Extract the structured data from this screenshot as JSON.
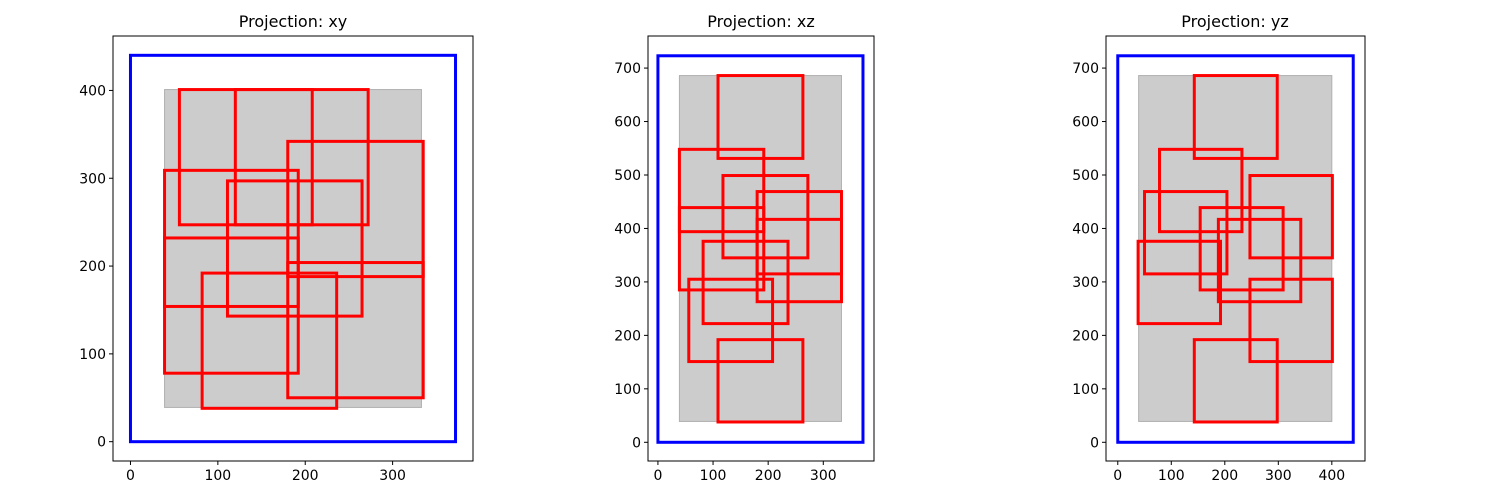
{
  "chart_data": [
    {
      "type": "rectangles",
      "title": "Projection: xy",
      "xlabel": "",
      "ylabel": "",
      "xlim": [
        -20,
        392
      ],
      "ylim": [
        -22,
        462
      ],
      "xticks": [
        0,
        100,
        200,
        300
      ],
      "yticks": [
        0,
        100,
        200,
        300,
        400
      ],
      "container": {
        "x0": 0,
        "y0": 0,
        "x1": 372,
        "y1": 440,
        "color": "#0000ff"
      },
      "region": {
        "x0": 39,
        "y0": 39,
        "x1": 333,
        "y1": 401,
        "color": "#cccccc"
      },
      "boxes": [
        {
          "x0": 56,
          "y0": 247,
          "x1": 208,
          "y1": 401
        },
        {
          "x0": 120,
          "y0": 247,
          "x1": 272,
          "y1": 401
        },
        {
          "x0": 180,
          "y0": 188,
          "x1": 335,
          "y1": 342
        },
        {
          "x0": 39,
          "y0": 154,
          "x1": 192,
          "y1": 309
        },
        {
          "x0": 111,
          "y0": 143,
          "x1": 265,
          "y1": 297
        },
        {
          "x0": 39,
          "y0": 78,
          "x1": 192,
          "y1": 232
        },
        {
          "x0": 180,
          "y0": 50,
          "x1": 335,
          "y1": 204
        },
        {
          "x0": 82,
          "y0": 38,
          "x1": 236,
          "y1": 192
        }
      ],
      "box_color": "#ff0000"
    },
    {
      "type": "rectangles",
      "title": "Projection: xz",
      "xlabel": "",
      "ylabel": "",
      "xlim": [
        -18,
        392
      ],
      "ylim": [
        -35,
        760
      ],
      "xticks": [
        0,
        100,
        200,
        300
      ],
      "yticks": [
        0,
        100,
        200,
        300,
        400,
        500,
        600,
        700
      ],
      "container": {
        "x0": 0,
        "y0": 0,
        "x1": 372,
        "y1": 723,
        "color": "#0000ff"
      },
      "region": {
        "x0": 39,
        "y0": 39,
        "x1": 333,
        "y1": 686,
        "color": "#cccccc"
      },
      "boxes": [
        {
          "x0": 109,
          "y0": 531,
          "x1": 263,
          "y1": 686
        },
        {
          "x0": 39,
          "y0": 394,
          "x1": 192,
          "y1": 548
        },
        {
          "x0": 118,
          "y0": 345,
          "x1": 272,
          "y1": 499
        },
        {
          "x0": 180,
          "y0": 315,
          "x1": 333,
          "y1": 469
        },
        {
          "x0": 39,
          "y0": 285,
          "x1": 192,
          "y1": 439
        },
        {
          "x0": 180,
          "y0": 263,
          "x1": 333,
          "y1": 417
        },
        {
          "x0": 82,
          "y0": 222,
          "x1": 236,
          "y1": 376
        },
        {
          "x0": 56,
          "y0": 151,
          "x1": 208,
          "y1": 305
        },
        {
          "x0": 109,
          "y0": 38,
          "x1": 263,
          "y1": 192
        }
      ],
      "box_color": "#ff0000"
    },
    {
      "type": "rectangles",
      "title": "Projection: yz",
      "xlabel": "",
      "ylabel": "",
      "xlim": [
        -22,
        462
      ],
      "ylim": [
        -35,
        760
      ],
      "xticks": [
        0,
        100,
        200,
        300,
        400
      ],
      "yticks": [
        0,
        100,
        200,
        300,
        400,
        500,
        600,
        700
      ],
      "container": {
        "x0": 0,
        "y0": 0,
        "x1": 440,
        "y1": 723,
        "color": "#0000ff"
      },
      "region": {
        "x0": 39,
        "y0": 39,
        "x1": 400,
        "y1": 686,
        "color": "#cccccc"
      },
      "boxes": [
        {
          "x0": 143,
          "y0": 531,
          "x1": 298,
          "y1": 686
        },
        {
          "x0": 78,
          "y0": 394,
          "x1": 232,
          "y1": 548
        },
        {
          "x0": 247,
          "y0": 345,
          "x1": 401,
          "y1": 499
        },
        {
          "x0": 50,
          "y0": 315,
          "x1": 204,
          "y1": 469
        },
        {
          "x0": 154,
          "y0": 285,
          "x1": 309,
          "y1": 439
        },
        {
          "x0": 188,
          "y0": 263,
          "x1": 342,
          "y1": 417
        },
        {
          "x0": 38,
          "y0": 222,
          "x1": 192,
          "y1": 376
        },
        {
          "x0": 247,
          "y0": 151,
          "x1": 401,
          "y1": 305
        },
        {
          "x0": 143,
          "y0": 38,
          "x1": 298,
          "y1": 192
        }
      ],
      "box_color": "#ff0000"
    }
  ]
}
